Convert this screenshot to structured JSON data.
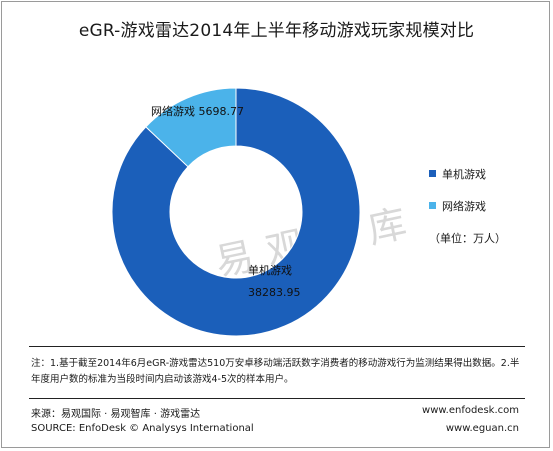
{
  "title": "eGR-游戏雷达2014年上半年移动游戏玩家规模对比",
  "watermark": "易观智库",
  "unit_note": "（单位：万人）",
  "chart_data": {
    "type": "pie",
    "variant": "donut",
    "title": "eGR-游戏雷达2014年上半年移动游戏玩家规模对比",
    "unit": "万人",
    "categories": [
      "单机游戏",
      "网络游戏"
    ],
    "values": [
      38283.95,
      5698.77
    ],
    "value_labels": [
      "38283.95",
      "5698.77"
    ],
    "colors": [
      "#1b5fba",
      "#4bb3ea"
    ],
    "legend_position": "right"
  },
  "note": "注：1.基于截至2014年6月eGR-游戏雷达510万安卓移动端活跃数字消费者的移动游戏行为监测结果得出数据。2.半年度用户数的标准为当段时间内启动该游戏4-5次的样本用户。",
  "footer": {
    "source_cn": "来源：易观国际 · 易观智库 · 游戏雷达",
    "source_en": "SOURCE: EnfoDesk © Analysys International",
    "url1": "www.enfodesk.com",
    "url2": "www.eguan.cn"
  }
}
